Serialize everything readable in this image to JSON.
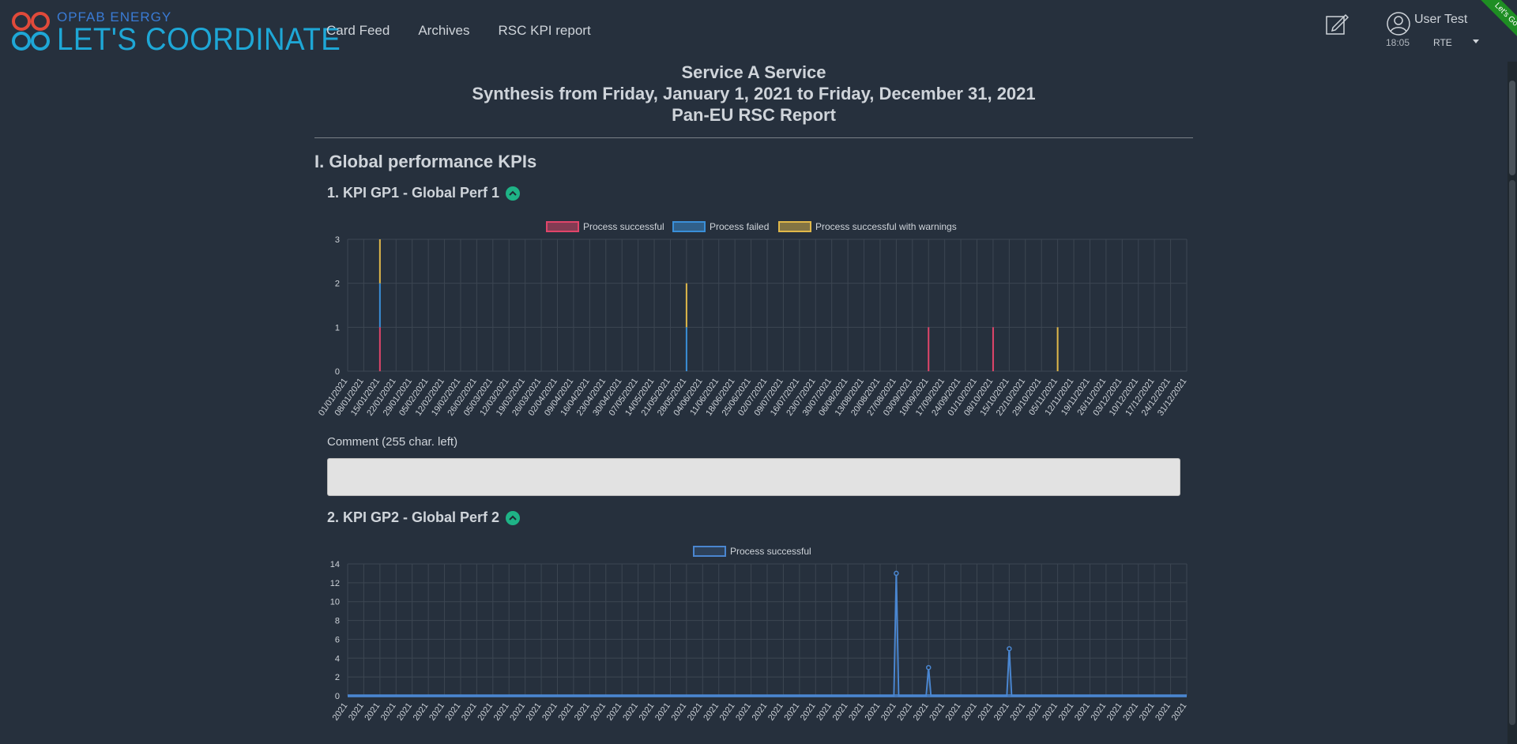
{
  "brand": {
    "small": "OPFAB ENERGY",
    "big": "LET'S COORDINATE"
  },
  "nav": {
    "items": [
      {
        "label": "Card Feed"
      },
      {
        "label": "Archives"
      },
      {
        "label": "RSC KPI report"
      }
    ]
  },
  "user": {
    "name": "User Test",
    "time": "18:05",
    "entity": "RTE"
  },
  "ribbon": "Let's Go OS",
  "report": {
    "title1": "Service A Service",
    "title2": "Synthesis from Friday, January 1, 2021 to Friday, December 31, 2021",
    "title3": "Pan-EU RSC Report",
    "section1": "I. Global performance KPIs",
    "kpi1_title": "1. KPI GP1 - Global Perf 1",
    "kpi2_title": "2. KPI GP2 - Global Perf 2",
    "comment_label": "Comment (255 char. left)"
  },
  "colors": {
    "successful": "#e0456a",
    "failed": "#3a8fd8",
    "warnings": "#e0b84a",
    "line": "#4a86d0",
    "accent": "#1eb386"
  },
  "chart_data": [
    {
      "type": "bar",
      "stacked": true,
      "categories": [
        "01/01/2021",
        "08/01/2021",
        "15/01/2021",
        "22/01/2021",
        "29/01/2021",
        "05/02/2021",
        "12/02/2021",
        "19/02/2021",
        "26/02/2021",
        "05/03/2021",
        "12/03/2021",
        "19/03/2021",
        "26/03/2021",
        "02/04/2021",
        "09/04/2021",
        "16/04/2021",
        "23/04/2021",
        "30/04/2021",
        "07/05/2021",
        "14/05/2021",
        "21/05/2021",
        "28/05/2021",
        "04/06/2021",
        "11/06/2021",
        "18/06/2021",
        "25/06/2021",
        "02/07/2021",
        "09/07/2021",
        "16/07/2021",
        "23/07/2021",
        "30/07/2021",
        "06/08/2021",
        "13/08/2021",
        "20/08/2021",
        "27/08/2021",
        "03/09/2021",
        "10/09/2021",
        "17/09/2021",
        "24/09/2021",
        "01/10/2021",
        "08/10/2021",
        "15/10/2021",
        "22/10/2021",
        "29/10/2021",
        "05/11/2021",
        "12/11/2021",
        "19/11/2021",
        "26/11/2021",
        "03/12/2021",
        "10/12/2021",
        "17/12/2021",
        "24/12/2021",
        "31/12/2021"
      ],
      "series": [
        {
          "name": "Process successful",
          "values": [
            0,
            0,
            1,
            0,
            0,
            0,
            0,
            0,
            0,
            0,
            0,
            0,
            0,
            0,
            0,
            0,
            0,
            0,
            0,
            0,
            0,
            0,
            0,
            0,
            0,
            0,
            0,
            0,
            0,
            0,
            0,
            0,
            0,
            0,
            0,
            0,
            1,
            0,
            0,
            0,
            1,
            0,
            0,
            0,
            0,
            0,
            0,
            0,
            0,
            0,
            0,
            0,
            0
          ]
        },
        {
          "name": "Process failed",
          "values": [
            0,
            0,
            1,
            0,
            0,
            0,
            0,
            0,
            0,
            0,
            0,
            0,
            0,
            0,
            0,
            0,
            0,
            0,
            0,
            0,
            0,
            1,
            0,
            0,
            0,
            0,
            0,
            0,
            0,
            0,
            0,
            0,
            0,
            0,
            0,
            0,
            0,
            0,
            0,
            0,
            0,
            0,
            0,
            0,
            0,
            0,
            0,
            0,
            0,
            0,
            0,
            0,
            0
          ]
        },
        {
          "name": "Process successful with warnings",
          "values": [
            0,
            0,
            1,
            0,
            0,
            0,
            0,
            0,
            0,
            0,
            0,
            0,
            0,
            0,
            0,
            0,
            0,
            0,
            0,
            0,
            0,
            1,
            0,
            0,
            0,
            0,
            0,
            0,
            0,
            0,
            0,
            0,
            0,
            0,
            0,
            0,
            0,
            0,
            0,
            0,
            0,
            0,
            0,
            0,
            1,
            0,
            0,
            0,
            0,
            0,
            0,
            0,
            0
          ]
        }
      ],
      "yticks": [
        "0",
        "1",
        "2",
        "3"
      ],
      "ylim": [
        0,
        3
      ],
      "grid": true,
      "legend": "top"
    },
    {
      "type": "line",
      "series": [
        {
          "name": "Process successful",
          "points": [
            {
              "x": "01/01/2021",
              "y": 0
            },
            {
              "x": "27/08/2021",
              "y": 13
            },
            {
              "x": "10/09/2021",
              "y": 3
            },
            {
              "x": "15/10/2021",
              "y": 5
            },
            {
              "x": "31/12/2021",
              "y": 0
            }
          ]
        }
      ],
      "yticks": [
        "0",
        "2",
        "4",
        "6",
        "8",
        "10",
        "12",
        "14"
      ],
      "ylim": [
        0,
        14
      ],
      "tick_label": "2021",
      "grid": true,
      "legend": "top"
    }
  ]
}
